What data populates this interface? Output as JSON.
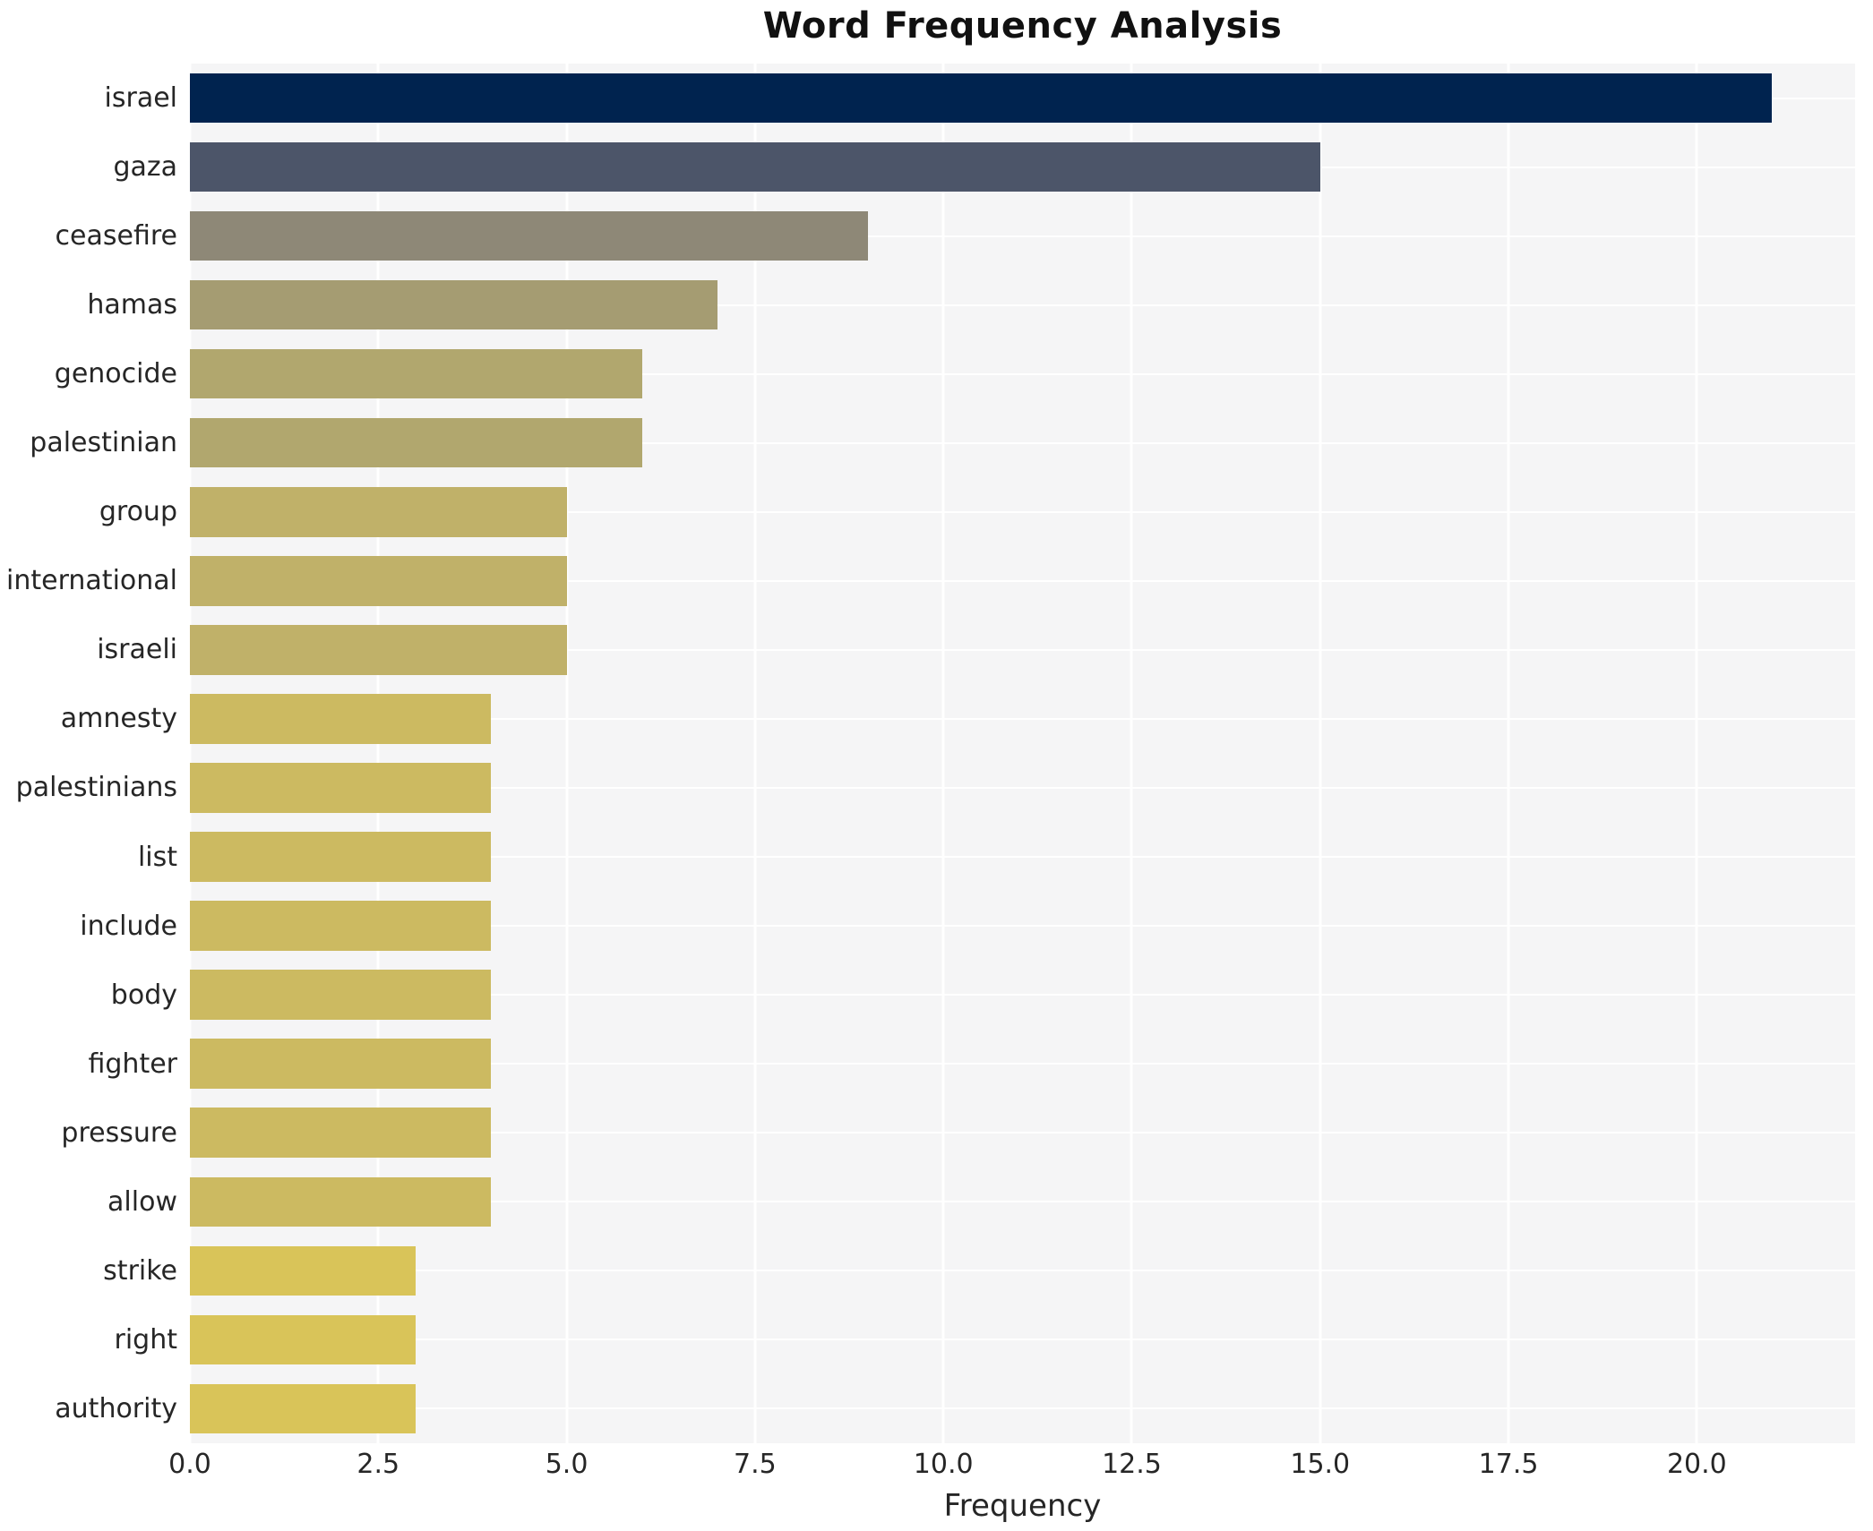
{
  "title": "Word Frequency Analysis",
  "chart_data": {
    "type": "bar",
    "orientation": "horizontal",
    "title": "Word Frequency Analysis",
    "xlabel": "Frequency",
    "ylabel": "",
    "categories": [
      "israel",
      "gaza",
      "ceasefire",
      "hamas",
      "genocide",
      "palestinian",
      "group",
      "international",
      "israeli",
      "amnesty",
      "palestinians",
      "list",
      "include",
      "body",
      "fighter",
      "pressure",
      "allow",
      "strike",
      "right",
      "authority"
    ],
    "values": [
      21,
      15,
      9,
      7,
      6,
      6,
      5,
      5,
      5,
      4,
      4,
      4,
      4,
      4,
      4,
      4,
      4,
      3,
      3,
      3
    ],
    "bar_colors": [
      "#00234f",
      "#4c5569",
      "#8e8877",
      "#a59c72",
      "#b1a76e",
      "#b1a76e",
      "#c0b169",
      "#c0b169",
      "#c0b169",
      "#ccba61",
      "#ccba61",
      "#ccba61",
      "#ccba61",
      "#ccba61",
      "#ccba61",
      "#ccba61",
      "#ccba61",
      "#d9c459",
      "#d9c459",
      "#d9c459"
    ],
    "xticks": [
      0.0,
      2.5,
      5.0,
      7.5,
      10.0,
      12.5,
      15.0,
      17.5,
      20.0
    ],
    "xtick_labels": [
      "0.0",
      "2.5",
      "5.0",
      "7.5",
      "10.0",
      "12.5",
      "15.0",
      "17.5",
      "20.0"
    ],
    "xlim": [
      0,
      22.1
    ],
    "grid": true,
    "legend": false,
    "plot_bg_color": "#f5f5f6",
    "grid_color": "#ffffff",
    "title_color": "#111111",
    "tick_label_color": "#262626"
  }
}
